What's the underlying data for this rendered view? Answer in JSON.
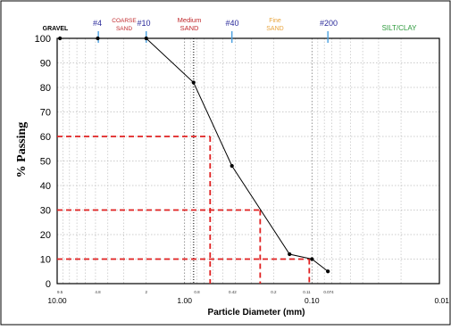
{
  "chart_data": {
    "type": "line",
    "title": "",
    "xlabel": "Particle Diameter (mm)",
    "ylabel": "% Passing",
    "x_scale": "log",
    "x_reversed": true,
    "xlim": [
      10.0,
      0.01
    ],
    "ylim": [
      0,
      100
    ],
    "grid": true,
    "yticks": [
      0,
      10,
      20,
      30,
      40,
      50,
      60,
      70,
      80,
      90,
      100
    ],
    "xticks_major": [
      "10.00",
      "1.00",
      "0.10",
      "0.01"
    ],
    "xticks_minor": [
      {
        "x": 9.5,
        "label": "9.5"
      },
      {
        "x": 4.8,
        "label": "4.8"
      },
      {
        "x": 2.0,
        "label": "2"
      },
      {
        "x": 0.8,
        "label": "0.8"
      },
      {
        "x": 0.42,
        "label": "0.42"
      },
      {
        "x": 0.2,
        "label": "0.2"
      },
      {
        "x": 0.11,
        "label": "0.11"
      },
      {
        "x": 0.074,
        "label": "0.074"
      }
    ],
    "series": [
      {
        "x": [
          9.5,
          4.8,
          2.0,
          0.85,
          0.425,
          0.15,
          0.1,
          0.075
        ],
        "y": [
          100,
          100,
          100,
          82,
          48,
          12,
          10,
          5
        ],
        "color": "#000000"
      }
    ],
    "reference_lines": [
      {
        "y": 60,
        "x": 0.63,
        "color": "#e02020"
      },
      {
        "y": 30,
        "x": 0.255,
        "color": "#e02020"
      },
      {
        "y": 10,
        "x": 0.105,
        "color": "#e02020"
      }
    ],
    "sieves": [
      {
        "label": "#4",
        "x": 4.75,
        "color": "#2a2a9a"
      },
      {
        "label": "#10",
        "x": 2.0,
        "color": "#2a2a9a"
      },
      {
        "label": "#40",
        "x": 0.425,
        "color": "#2a2a9a"
      },
      {
        "label": "#200",
        "x": 0.075,
        "color": "#2a2a9a"
      }
    ],
    "zones": [
      {
        "lines": [
          "GRAVEL"
        ],
        "color": "#000000"
      },
      {
        "lines": [
          "COARSE",
          "SAND"
        ],
        "color": "#c0282c"
      },
      {
        "lines": [
          "Medium",
          "SAND"
        ],
        "color": "#c0282c"
      },
      {
        "lines": [
          "Fine",
          "SAND"
        ],
        "color": "#e8a43c"
      },
      {
        "lines": [
          "SILT/CLAY"
        ],
        "color": "#2d9a3c"
      }
    ]
  }
}
